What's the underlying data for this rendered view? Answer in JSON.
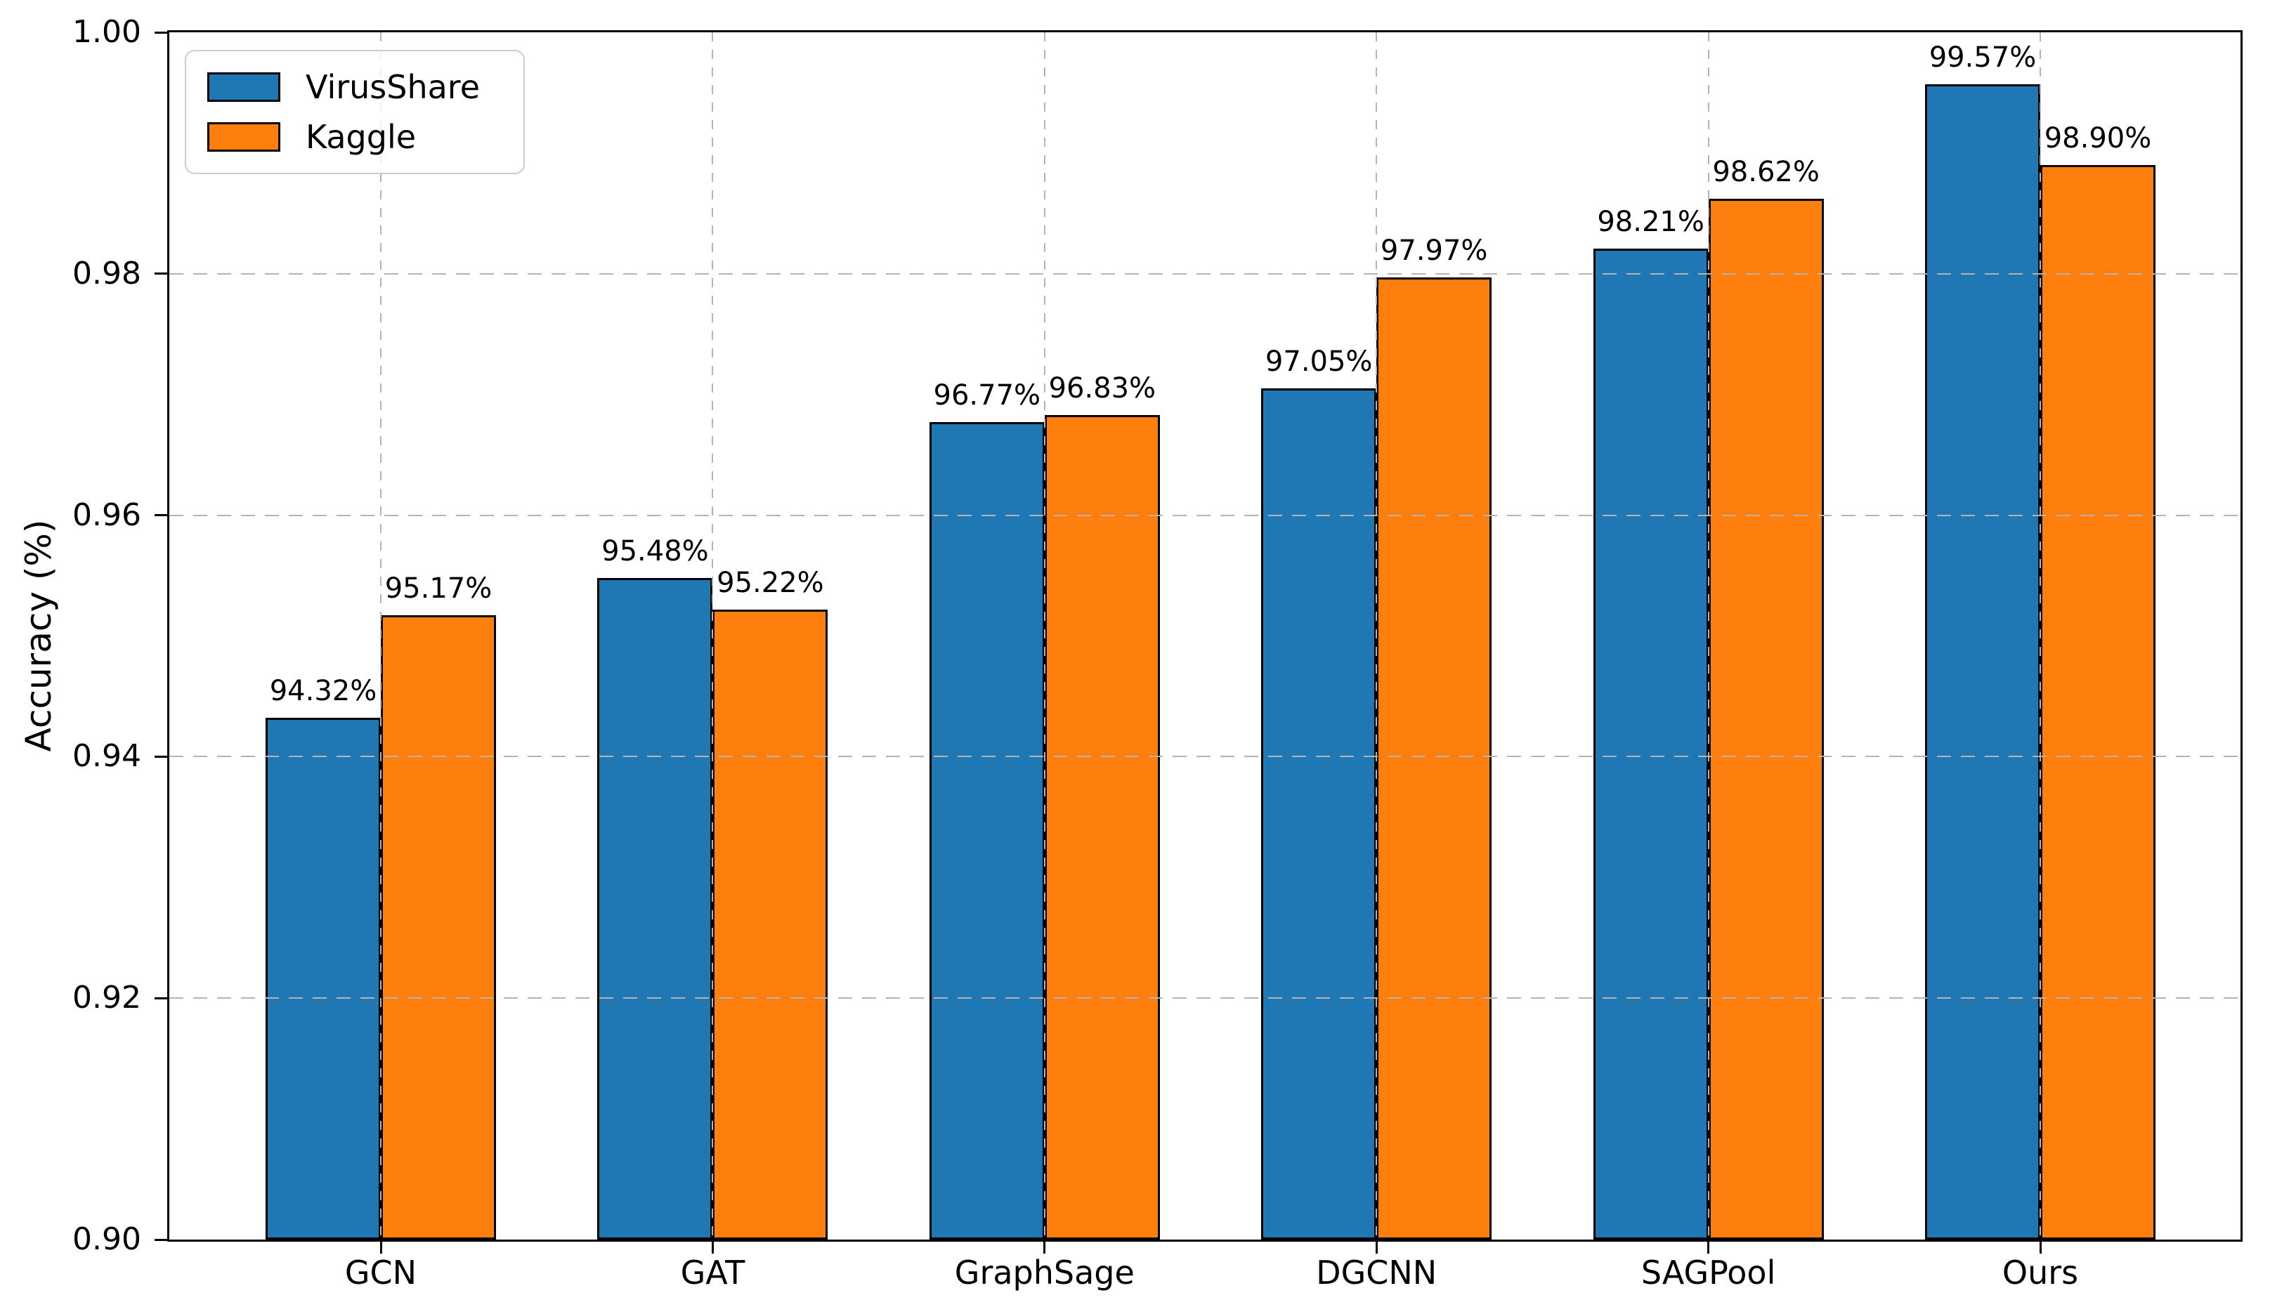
{
  "chart_data": {
    "type": "bar",
    "title": "",
    "categories": [
      "GCN",
      "GAT",
      "GraphSage",
      "DGCNN",
      "SAGPool",
      "Ours"
    ],
    "series": [
      {
        "name": "VirusShare",
        "color": "#1f77b4",
        "values": [
          0.9432,
          0.9548,
          0.9677,
          0.9705,
          0.9821,
          0.9957
        ],
        "labels": [
          "94.32%",
          "95.48%",
          "96.77%",
          "97.05%",
          "98.21%",
          "99.57%"
        ]
      },
      {
        "name": "Kaggle",
        "color": "#ff7f0e",
        "values": [
          0.9517,
          0.9522,
          0.9683,
          0.9797,
          0.9862,
          0.989
        ],
        "labels": [
          "95.17%",
          "95.22%",
          "96.83%",
          "97.97%",
          "98.62%",
          "98.90%"
        ]
      }
    ],
    "xlabel": "",
    "ylabel": "Accuracy (%)",
    "ylim": [
      0.9,
      1.0
    ],
    "yticks": [
      {
        "value": 1.0,
        "label": "1.00"
      },
      {
        "value": 0.98,
        "label": "0.98"
      },
      {
        "value": 0.96,
        "label": "0.96"
      },
      {
        "value": 0.94,
        "label": "0.94"
      },
      {
        "value": 0.92,
        "label": "0.92"
      },
      {
        "value": 0.9,
        "label": "0.90"
      }
    ],
    "grid": "dashed-both-above-bars",
    "legend_position": "upper-left",
    "bar_edge_color": "#000000",
    "grid_color": "#b4b4b4",
    "axis_color": "#000000",
    "background": "#ffffff"
  }
}
